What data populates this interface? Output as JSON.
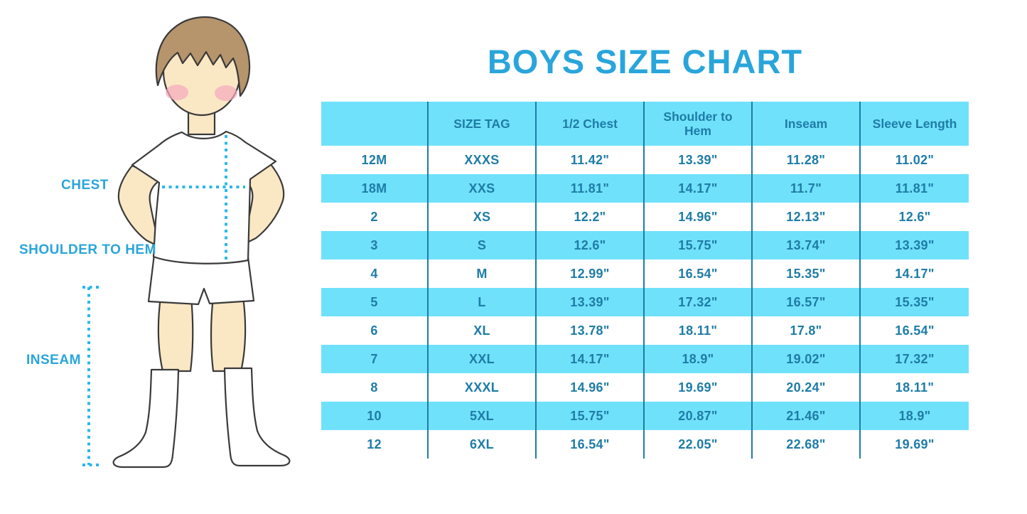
{
  "title": "BOYS SIZE CHART",
  "figure": {
    "description": "boy-measurement-illustration",
    "labels": {
      "chest": "CHEST",
      "shoulder_to_hem": "SHOULDER TO HEM",
      "inseam": "INSEAM"
    }
  },
  "colors": {
    "accent_blue": "#29A5DB",
    "band_blue": "#70E1FB",
    "table_teal": "#1E7CA6",
    "dotted_line": "#2BB7EA",
    "skin": "#FAE7C4",
    "hair": "#B6946C",
    "cheek": "#F3A9BE"
  },
  "chart_data": {
    "type": "table",
    "title": "BOYS SIZE CHART",
    "columns": [
      "",
      "SIZE TAG",
      "1/2 Chest",
      "Shoulder to Hem",
      "Inseam",
      "Sleeve Length"
    ],
    "rows": [
      [
        "12M",
        "XXXS",
        "11.42\"",
        "13.39\"",
        "11.28\"",
        "11.02\""
      ],
      [
        "18M",
        "XXS",
        "11.81\"",
        "14.17\"",
        "11.7\"",
        "11.81\""
      ],
      [
        "2",
        "XS",
        "12.2\"",
        "14.96\"",
        "12.13\"",
        "12.6\""
      ],
      [
        "3",
        "S",
        "12.6\"",
        "15.75\"",
        "13.74\"",
        "13.39\""
      ],
      [
        "4",
        "M",
        "12.99\"",
        "16.54\"",
        "15.35\"",
        "14.17\""
      ],
      [
        "5",
        "L",
        "13.39\"",
        "17.32\"",
        "16.57\"",
        "15.35\""
      ],
      [
        "6",
        "XL",
        "13.78\"",
        "18.11\"",
        "17.8\"",
        "16.54\""
      ],
      [
        "7",
        "XXL",
        "14.17\"",
        "18.9\"",
        "19.02\"",
        "17.32\""
      ],
      [
        "8",
        "XXXL",
        "14.96\"",
        "19.69\"",
        "20.24\"",
        "18.11\""
      ],
      [
        "10",
        "5XL",
        "15.75\"",
        "20.87\"",
        "21.46\"",
        "18.9\""
      ],
      [
        "12",
        "6XL",
        "16.54\"",
        "22.05\"",
        "22.68\"",
        "19.69\""
      ]
    ]
  }
}
